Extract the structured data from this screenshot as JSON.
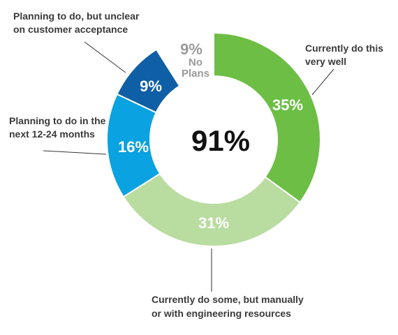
{
  "chart_data": {
    "type": "pie",
    "variant": "donut",
    "center_value": "91%",
    "slices": [
      {
        "label_lines": [
          "Currently do this",
          "very well"
        ],
        "value": 35,
        "value_label": "35%",
        "color": "#6cbe45"
      },
      {
        "label_lines": [
          "Currently do some, but manually",
          "or with engineering resources"
        ],
        "value": 31,
        "value_label": "31%",
        "color": "#b9dca0"
      },
      {
        "label_lines": [
          "Planning to do in the",
          "next 12-24 months"
        ],
        "value": 16,
        "value_label": "16%",
        "color": "#0aa2e0"
      },
      {
        "label_lines": [
          "Planning to do, but unclear",
          "on customer acceptance"
        ],
        "value": 9,
        "value_label": "9%",
        "color": "#0e5fa6"
      },
      {
        "label_lines": [
          "No",
          "Plans"
        ],
        "value": 9,
        "value_label": "9%",
        "color": "#ffffff",
        "gap": true
      }
    ]
  }
}
